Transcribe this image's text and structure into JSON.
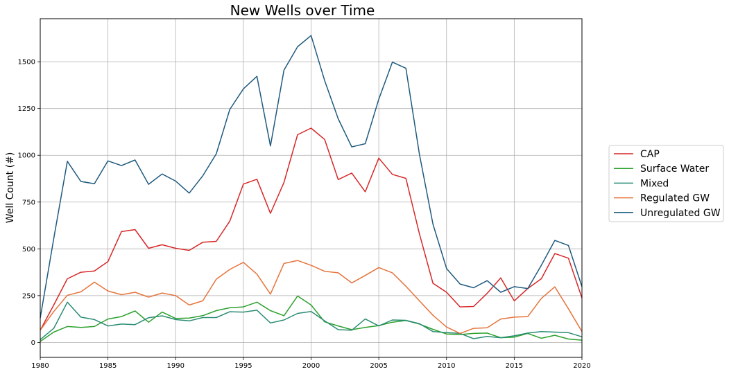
{
  "chart_data": {
    "type": "line",
    "title": "New Wells over Time",
    "xlabel": "",
    "ylabel": "Well Count (#)",
    "xlim": [
      1980,
      2020
    ],
    "ylim": [
      -80,
      1730
    ],
    "x_ticks": [
      1980,
      1985,
      1990,
      1995,
      2000,
      2005,
      2010,
      2015,
      2020
    ],
    "y_ticks": [
      0,
      250,
      500,
      750,
      1000,
      1250,
      1500
    ],
    "grid": true,
    "legend_position": "right",
    "x": [
      1980,
      1981,
      1982,
      1983,
      1984,
      1985,
      1986,
      1987,
      1988,
      1989,
      1990,
      1991,
      1992,
      1993,
      1994,
      1995,
      1996,
      1997,
      1998,
      1999,
      2000,
      2001,
      2002,
      2003,
      2004,
      2005,
      2006,
      2007,
      2008,
      2009,
      2010,
      2011,
      2012,
      2013,
      2014,
      2015,
      2016,
      2017,
      2018,
      2019,
      2020
    ],
    "series": [
      {
        "name": "CAP",
        "color": "#d62728",
        "values": [
          65,
          200,
          340,
          375,
          382,
          432,
          592,
          603,
          503,
          522,
          503,
          492,
          535,
          540,
          648,
          846,
          872,
          690,
          855,
          1110,
          1145,
          1085,
          870,
          905,
          805,
          985,
          898,
          877,
          580,
          316,
          268,
          190,
          192,
          262,
          345,
          222,
          288,
          340,
          475,
          450,
          238
        ]
      },
      {
        "name": "Surface Water",
        "color": "#2ca02c",
        "values": [
          5,
          55,
          85,
          80,
          85,
          125,
          138,
          168,
          108,
          162,
          128,
          130,
          143,
          170,
          185,
          190,
          215,
          170,
          143,
          248,
          200,
          110,
          88,
          68,
          80,
          90,
          108,
          117,
          98,
          70,
          45,
          42,
          48,
          50,
          25,
          28,
          48,
          22,
          38,
          18,
          12
        ]
      },
      {
        "name": "Mixed",
        "color": "#2a8c74",
        "values": [
          15,
          75,
          215,
          135,
          122,
          88,
          98,
          95,
          132,
          142,
          122,
          115,
          133,
          133,
          164,
          162,
          172,
          104,
          120,
          155,
          165,
          115,
          68,
          65,
          125,
          88,
          120,
          118,
          100,
          58,
          52,
          48,
          20,
          32,
          25,
          35,
          50,
          58,
          55,
          52,
          30
        ]
      },
      {
        "name": "Regulated GW",
        "color": "#e6733b",
        "values": [
          65,
          165,
          252,
          270,
          322,
          275,
          255,
          268,
          242,
          264,
          250,
          200,
          222,
          338,
          390,
          428,
          365,
          258,
          422,
          438,
          412,
          380,
          372,
          318,
          358,
          400,
          372,
          300,
          222,
          145,
          82,
          48,
          75,
          78,
          125,
          135,
          138,
          235,
          297,
          180,
          58
        ]
      },
      {
        "name": "Unregulated GW",
        "color": "#1f5a7e",
        "values": [
          130,
          555,
          968,
          860,
          848,
          970,
          945,
          975,
          845,
          900,
          862,
          798,
          890,
          1008,
          1245,
          1355,
          1422,
          1050,
          1455,
          1580,
          1640,
          1400,
          1195,
          1045,
          1062,
          1300,
          1498,
          1465,
          1005,
          632,
          395,
          312,
          292,
          330,
          268,
          298,
          288,
          412,
          545,
          518,
          298
        ]
      }
    ]
  }
}
